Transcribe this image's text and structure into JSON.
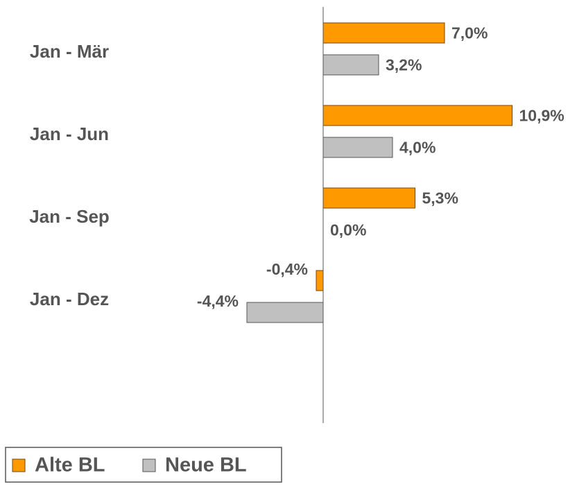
{
  "chart_data": {
    "type": "hbar",
    "categories": [
      "Jan - Mär",
      "Jan - Jun",
      "Jan - Sep",
      "Jan - Dez"
    ],
    "series": [
      {
        "name": "Alte BL",
        "color": "#FF9900",
        "values": [
          7.0,
          10.9,
          5.3,
          -0.4
        ],
        "value_labels": [
          "7,0%",
          "10,9%",
          "5,3%",
          "-0,4%"
        ]
      },
      {
        "name": "Neue BL",
        "color": "#C0C0C0",
        "values": [
          3.2,
          4.0,
          0.0,
          -4.4
        ],
        "value_labels": [
          "3,2%",
          "4,0%",
          "0,0%",
          "-4,4%"
        ]
      }
    ],
    "xlim": [
      -8,
      14
    ],
    "legend": "bottom-left"
  }
}
